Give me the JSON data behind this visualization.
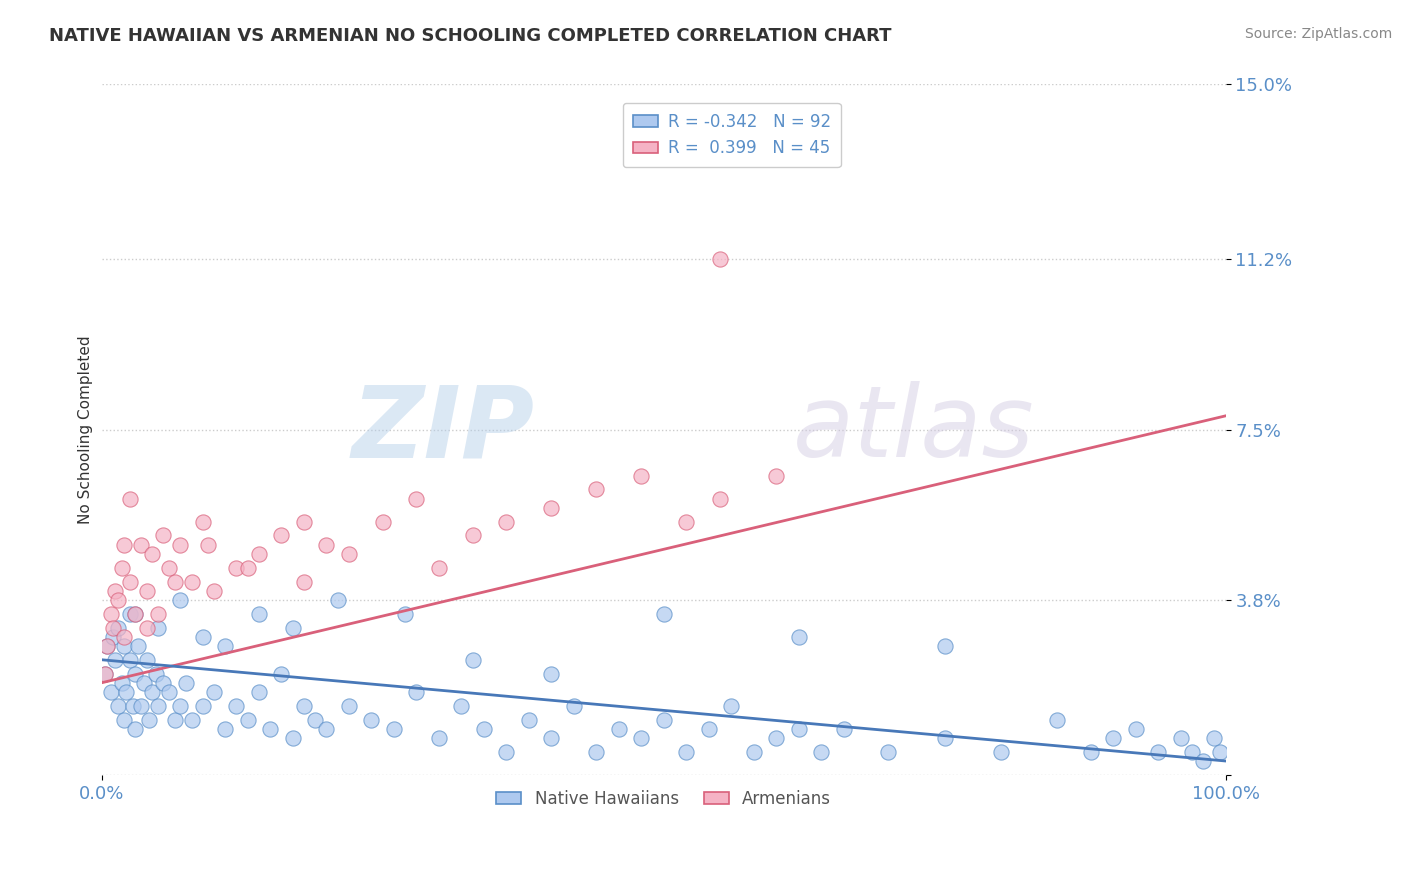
{
  "title": "NATIVE HAWAIIAN VS ARMENIAN NO SCHOOLING COMPLETED CORRELATION CHART",
  "source": "Source: ZipAtlas.com",
  "ylabel": "No Schooling Completed",
  "xlim": [
    0.0,
    100.0
  ],
  "ylim": [
    0.0,
    15.0
  ],
  "yticks": [
    0.0,
    3.8,
    7.5,
    11.2,
    15.0
  ],
  "ytick_labels": [
    "",
    "3.8%",
    "7.5%",
    "11.2%",
    "15.0%"
  ],
  "native_hawaiian_color": "#aec9ef",
  "armenian_color": "#f5b3c5",
  "native_hawaiian_edge_color": "#5a8fc8",
  "armenian_edge_color": "#d9607a",
  "native_hawaiian_line_color": "#4878b8",
  "armenian_line_color": "#d9607a",
  "legend_nh_R": -0.342,
  "legend_nh_N": 92,
  "legend_arm_R": 0.399,
  "legend_arm_N": 45,
  "watermark_zip": "ZIP",
  "watermark_atlas": "atlas",
  "background_color": "#ffffff",
  "grid_color": "#cccccc",
  "title_color": "#333333",
  "tick_label_color": "#5a8fc8",
  "ylabel_color": "#333333",
  "nh_x": [
    0.3,
    0.5,
    0.8,
    1.0,
    1.2,
    1.5,
    1.5,
    1.8,
    2.0,
    2.0,
    2.2,
    2.5,
    2.5,
    2.8,
    3.0,
    3.0,
    3.2,
    3.5,
    3.8,
    4.0,
    4.2,
    4.5,
    4.8,
    5.0,
    5.5,
    6.0,
    6.5,
    7.0,
    7.5,
    8.0,
    9.0,
    10.0,
    11.0,
    12.0,
    13.0,
    14.0,
    15.0,
    16.0,
    17.0,
    18.0,
    19.0,
    20.0,
    22.0,
    24.0,
    26.0,
    28.0,
    30.0,
    32.0,
    34.0,
    36.0,
    38.0,
    40.0,
    42.0,
    44.0,
    46.0,
    48.0,
    50.0,
    52.0,
    54.0,
    56.0,
    58.0,
    60.0,
    62.0,
    64.0,
    66.0,
    70.0,
    75.0,
    80.0,
    85.0,
    88.0,
    90.0,
    92.0,
    94.0,
    96.0,
    97.0,
    98.0,
    99.0,
    99.5,
    3.0,
    5.0,
    7.0,
    9.0,
    11.0,
    14.0,
    17.0,
    21.0,
    27.0,
    33.0,
    40.0,
    50.0,
    62.0,
    75.0
  ],
  "nh_y": [
    2.2,
    2.8,
    1.8,
    3.0,
    2.5,
    1.5,
    3.2,
    2.0,
    2.8,
    1.2,
    1.8,
    2.5,
    3.5,
    1.5,
    2.2,
    1.0,
    2.8,
    1.5,
    2.0,
    2.5,
    1.2,
    1.8,
    2.2,
    1.5,
    2.0,
    1.8,
    1.2,
    1.5,
    2.0,
    1.2,
    1.5,
    1.8,
    1.0,
    1.5,
    1.2,
    1.8,
    1.0,
    2.2,
    0.8,
    1.5,
    1.2,
    1.0,
    1.5,
    1.2,
    1.0,
    1.8,
    0.8,
    1.5,
    1.0,
    0.5,
    1.2,
    0.8,
    1.5,
    0.5,
    1.0,
    0.8,
    1.2,
    0.5,
    1.0,
    1.5,
    0.5,
    0.8,
    1.0,
    0.5,
    1.0,
    0.5,
    0.8,
    0.5,
    1.2,
    0.5,
    0.8,
    1.0,
    0.5,
    0.8,
    0.5,
    0.3,
    0.8,
    0.5,
    3.5,
    3.2,
    3.8,
    3.0,
    2.8,
    3.5,
    3.2,
    3.8,
    3.5,
    2.5,
    2.2,
    3.5,
    3.0,
    2.8
  ],
  "arm_x": [
    0.3,
    0.5,
    0.8,
    1.0,
    1.2,
    1.5,
    1.8,
    2.0,
    2.5,
    3.0,
    3.5,
    4.0,
    4.5,
    5.0,
    5.5,
    6.0,
    7.0,
    8.0,
    9.0,
    10.0,
    12.0,
    14.0,
    16.0,
    18.0,
    20.0,
    22.0,
    25.0,
    28.0,
    30.0,
    33.0,
    36.0,
    40.0,
    44.0,
    48.0,
    52.0,
    55.0,
    60.0,
    2.0,
    4.0,
    6.5,
    9.5,
    13.0,
    18.0,
    2.5,
    55.0
  ],
  "arm_y": [
    2.2,
    2.8,
    3.5,
    3.2,
    4.0,
    3.8,
    4.5,
    3.0,
    4.2,
    3.5,
    5.0,
    4.0,
    4.8,
    3.5,
    5.2,
    4.5,
    5.0,
    4.2,
    5.5,
    4.0,
    4.5,
    4.8,
    5.2,
    5.5,
    5.0,
    4.8,
    5.5,
    6.0,
    4.5,
    5.2,
    5.5,
    5.8,
    6.2,
    6.5,
    5.5,
    6.0,
    6.5,
    5.0,
    3.2,
    4.2,
    5.0,
    4.5,
    4.2,
    6.0,
    11.2
  ],
  "arm_line_x0": 0,
  "arm_line_x1": 100,
  "arm_line_y0": 2.0,
  "arm_line_y1": 7.8,
  "nh_line_x0": 0,
  "nh_line_x1": 100,
  "nh_line_y0": 2.5,
  "nh_line_y1": 0.3
}
